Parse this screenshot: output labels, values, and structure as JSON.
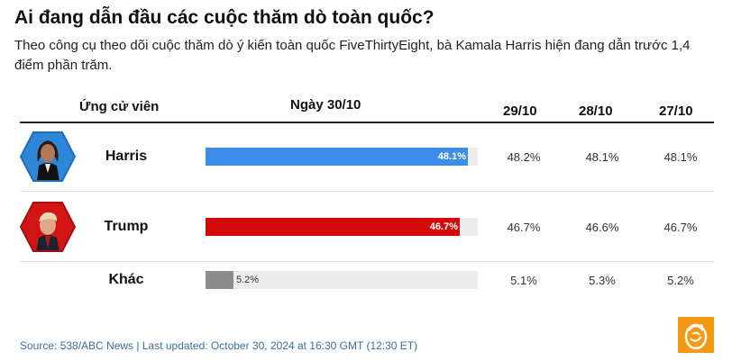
{
  "header": {
    "title": "Ai đang dẫn đầu các cuộc thăm dò toàn quốc?",
    "subtitle": "Theo công cụ theo dõi cuộc thăm dò ý kiến toàn quốc FiveThirtyEight, bà Kamala Harris hiện đang dẫn trước 1,4 điểm phần trăm."
  },
  "table": {
    "col_candidate": "Ứng cử viên",
    "col_current": "Ngày 30/10",
    "col_d1": "29/10",
    "col_d2": "28/10",
    "col_d3": "27/10"
  },
  "chart_data": {
    "type": "bar",
    "categories": [
      "Harris",
      "Trump",
      "Khác"
    ],
    "series": [
      {
        "name": "Ngày 30/10",
        "values": [
          48.1,
          46.7,
          5.2
        ],
        "labels": [
          "48.1%",
          "46.7%",
          "5.2%"
        ]
      },
      {
        "name": "29/10",
        "values": [
          48.2,
          46.7,
          5.1
        ],
        "labels": [
          "48.2%",
          "46.7%",
          "5.1%"
        ]
      },
      {
        "name": "28/10",
        "values": [
          48.1,
          46.6,
          5.3
        ],
        "labels": [
          "48.1%",
          "46.6%",
          "5.3%"
        ]
      },
      {
        "name": "27/10",
        "values": [
          48.1,
          46.7,
          5.2
        ],
        "labels": [
          "48.1%",
          "46.7%",
          "5.2%"
        ]
      }
    ],
    "xlim": [
      0,
      50
    ],
    "colors": [
      "#3d8ee8",
      "#d10a0a",
      "#8c8c8c"
    ],
    "track_color": "#ececec"
  },
  "footer": {
    "source": "Source: 538/ABC News | Last updated: October 30, 2024 at 16:30 GMT (12:30 ET)"
  },
  "icons": {
    "harris_avatar": "harris-portrait-icon",
    "trump_avatar": "trump-portrait-icon",
    "logo": "al-jazeera-logo"
  }
}
